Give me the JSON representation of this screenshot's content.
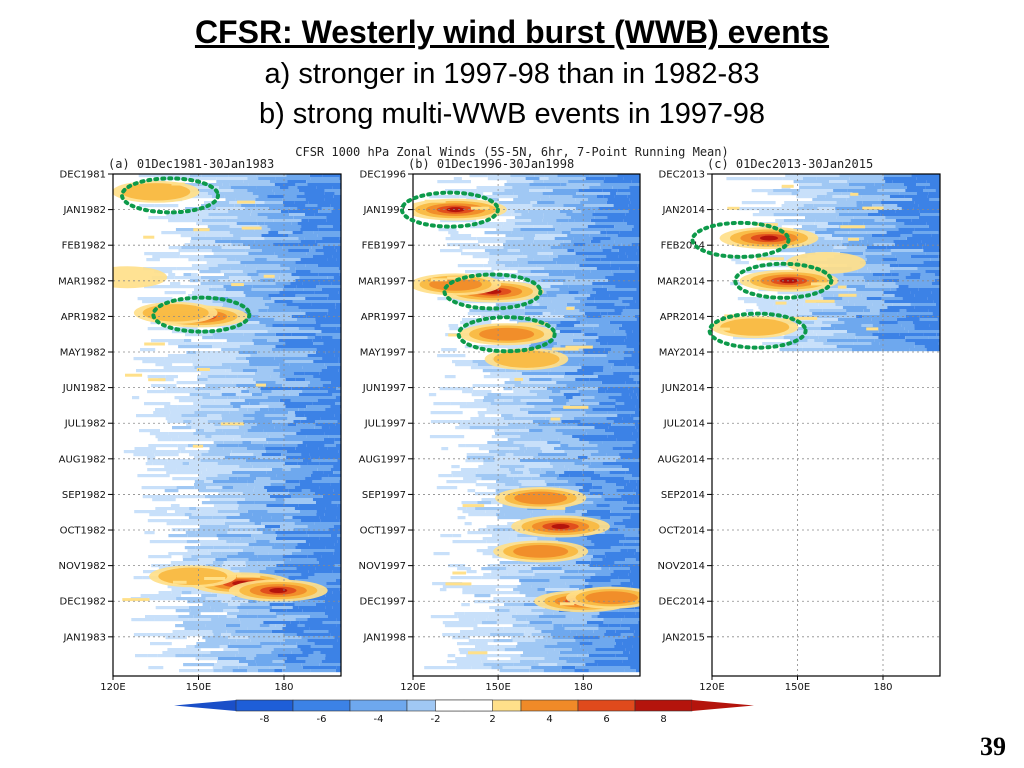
{
  "slide": {
    "title": "CFSR: Westerly wind burst (WWB) events",
    "line_a": "a) stronger in 1997-98 than in 1982-83",
    "line_b": "b) strong multi-WWB events in 1997-98",
    "page_number": "39"
  },
  "colors": {
    "negative": [
      "#1e5ed8",
      "#3c82e6",
      "#6ea8ee",
      "#a0c8f4",
      "#c8e0fa"
    ],
    "positive": [
      "#ffe08a",
      "#f8b840",
      "#f08a28",
      "#e04a1c",
      "#b4140c"
    ],
    "highlight": "#0d9a4a",
    "grid": "#8a8a8a"
  },
  "chart_data": {
    "type": "heatmap",
    "title": "CFSR 1000 hPa Zonal Winds (5S-5N, 6hr, 7-Point Running Mean)",
    "xlabel": "",
    "ylabel": "",
    "x_ticks": [
      "120E",
      "150E",
      "180"
    ],
    "x_range": [
      "120E",
      "200E"
    ],
    "colorbar": {
      "ticks": [
        -8,
        -6,
        -4,
        -2,
        2,
        4,
        6,
        8
      ]
    },
    "panels": [
      {
        "title": "(a) 01Dec1981-30Jan1983",
        "y_ticks": [
          "DEC1981",
          "JAN1982",
          "FEB1982",
          "MAR1982",
          "APR1982",
          "MAY1982",
          "JUN1982",
          "JUL1982",
          "AUG1982",
          "SEP1982",
          "OCT1982",
          "NOV1982",
          "DEC1982",
          "JAN1983"
        ],
        "data_months": 14,
        "wwb_highlights": [
          {
            "lon": 140,
            "month": 0.6
          },
          {
            "lon": 151,
            "month": 3.95
          }
        ],
        "burst_events": [
          {
            "lon": 135,
            "month": 0.5,
            "intensity": 5
          },
          {
            "lon": 150,
            "month": 4.0,
            "intensity": 8
          },
          {
            "lon": 142,
            "month": 3.9,
            "intensity": 4
          },
          {
            "lon": 165,
            "month": 11.5,
            "intensity": 9
          },
          {
            "lon": 178,
            "month": 11.7,
            "intensity": 8
          },
          {
            "lon": 148,
            "month": 11.3,
            "intensity": 5
          },
          {
            "lon": 125,
            "month": 2.9,
            "intensity": 3
          }
        ]
      },
      {
        "title": "(b) 01Dec1996-30Jan1998",
        "y_ticks": [
          "DEC1996",
          "JAN1997",
          "FEB1997",
          "MAR1997",
          "APR1997",
          "MAY1997",
          "JUN1997",
          "JUL1997",
          "AUG1997",
          "SEP1997",
          "OCT1997",
          "NOV1997",
          "DEC1997",
          "JAN1998"
        ],
        "data_months": 14,
        "wwb_highlights": [
          {
            "lon": 133,
            "month": 1.0
          },
          {
            "lon": 148,
            "month": 3.3
          },
          {
            "lon": 153,
            "month": 4.5
          }
        ],
        "burst_events": [
          {
            "lon": 135,
            "month": 1.0,
            "intensity": 9
          },
          {
            "lon": 148,
            "month": 3.3,
            "intensity": 9
          },
          {
            "lon": 135,
            "month": 3.1,
            "intensity": 6
          },
          {
            "lon": 153,
            "month": 4.5,
            "intensity": 7
          },
          {
            "lon": 160,
            "month": 5.2,
            "intensity": 4
          },
          {
            "lon": 165,
            "month": 9.1,
            "intensity": 6
          },
          {
            "lon": 172,
            "month": 9.9,
            "intensity": 8
          },
          {
            "lon": 165,
            "month": 10.6,
            "intensity": 7
          },
          {
            "lon": 180,
            "month": 12.0,
            "intensity": 8
          },
          {
            "lon": 190,
            "month": 11.9,
            "intensity": 6
          }
        ]
      },
      {
        "title": "(c) 01Dec2013-30Jan2015",
        "y_ticks": [
          "DEC2013",
          "JAN2014",
          "FEB2014",
          "MAR2014",
          "APR2014",
          "MAY2014",
          "JUN2014",
          "JUL2014",
          "AUG2014",
          "SEP2014",
          "OCT2014",
          "NOV2014",
          "DEC2014",
          "JAN2015"
        ],
        "data_months": 5.0,
        "wwb_highlights": [
          {
            "lon": 130,
            "month": 1.85
          },
          {
            "lon": 145,
            "month": 3.0
          },
          {
            "lon": 136,
            "month": 4.4
          }
        ],
        "burst_events": [
          {
            "lon": 140,
            "month": 1.8,
            "intensity": 8
          },
          {
            "lon": 147,
            "month": 3.0,
            "intensity": 8
          },
          {
            "lon": 135,
            "month": 4.3,
            "intensity": 5
          },
          {
            "lon": 160,
            "month": 2.5,
            "intensity": 3
          }
        ]
      }
    ]
  }
}
